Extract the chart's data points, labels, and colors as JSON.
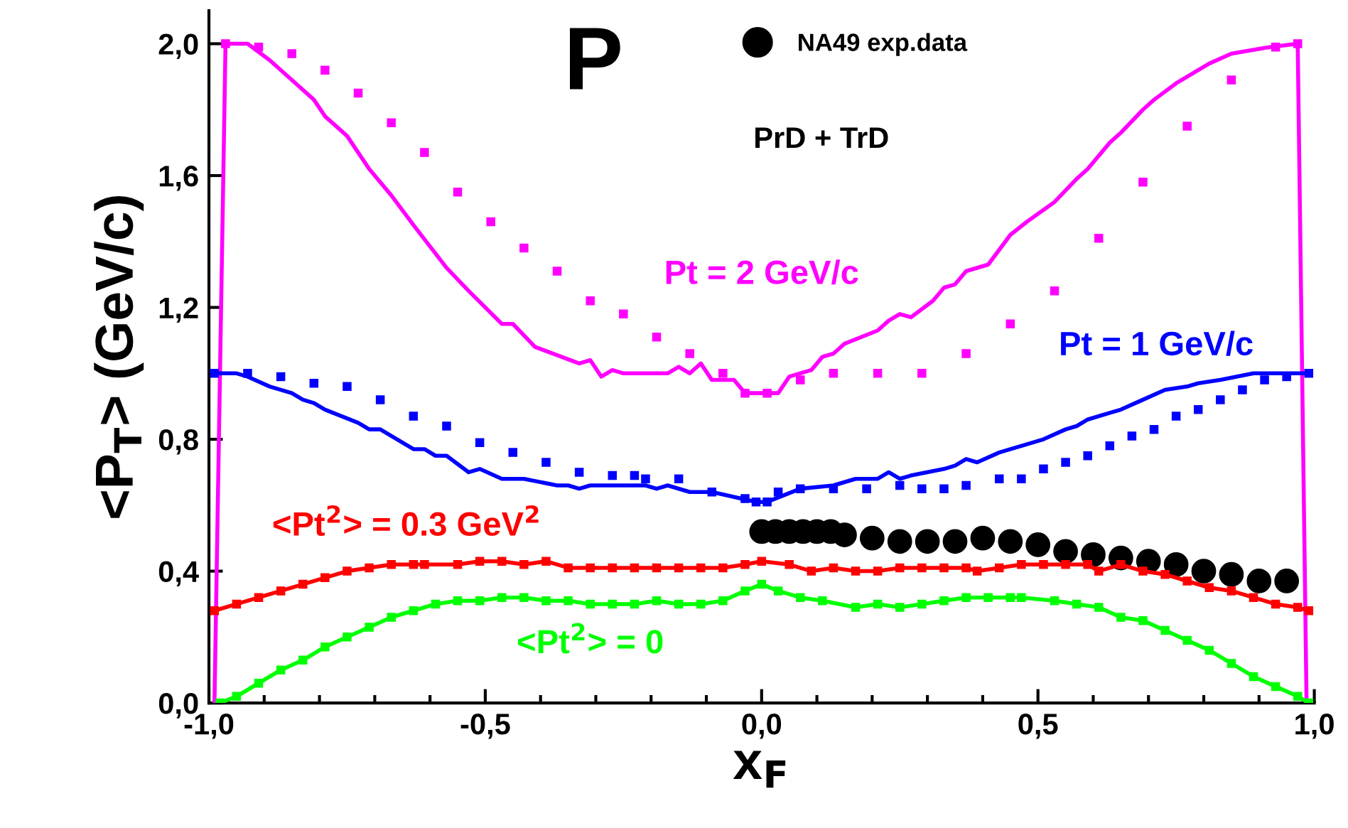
{
  "chart_data": {
    "type": "line",
    "xlabel": "x$_{F}$",
    "ylabel": "<P$_{T}$> (GeV/c)",
    "annotations": [
      "P",
      "PrD + TrD"
    ],
    "xlim": [
      -1.0,
      1.0
    ],
    "ylim": [
      0.0,
      2.1
    ],
    "xticks": [
      {
        "value": -1.0,
        "label": "-1,0"
      },
      {
        "value": -0.9,
        "label": null
      },
      {
        "value": -0.8,
        "label": null
      },
      {
        "value": -0.7,
        "label": null
      },
      {
        "value": -0.6,
        "label": null
      },
      {
        "value": -0.5,
        "label": "-0,5"
      },
      {
        "value": -0.4,
        "label": null
      },
      {
        "value": -0.3,
        "label": null
      },
      {
        "value": -0.2,
        "label": null
      },
      {
        "value": -0.1,
        "label": null
      },
      {
        "value": 0.0,
        "label": "0,0"
      },
      {
        "value": 0.1,
        "label": null
      },
      {
        "value": 0.2,
        "label": null
      },
      {
        "value": 0.3,
        "label": null
      },
      {
        "value": 0.4,
        "label": null
      },
      {
        "value": 0.5,
        "label": "0,5"
      },
      {
        "value": 0.6,
        "label": null
      },
      {
        "value": 0.7,
        "label": null
      },
      {
        "value": 0.8,
        "label": null
      },
      {
        "value": 0.9,
        "label": null
      },
      {
        "value": 1.0,
        "label": "1,0"
      }
    ],
    "yticks": [
      {
        "value": 0.0,
        "label": "0,0"
      },
      {
        "value": 0.4,
        "label": "0,4"
      },
      {
        "value": 0.8,
        "label": "0,8"
      },
      {
        "value": 1.2,
        "label": "1,2"
      },
      {
        "value": 1.6,
        "label": "1,6"
      },
      {
        "value": 2.0,
        "label": "2,0"
      }
    ],
    "grid": false,
    "legend": "top",
    "series": [
      {
        "name": "Pt = 2 GeV/c",
        "marker": "none",
        "color": "#ff00ff",
        "x": [
          -0.99,
          -0.97,
          -0.93,
          -0.89,
          -0.85,
          -0.81,
          -0.79,
          -0.75,
          -0.71,
          -0.67,
          -0.63,
          -0.57,
          -0.53,
          -0.47,
          -0.45,
          -0.41,
          -0.33,
          -0.31,
          -0.29,
          -0.27,
          -0.25,
          -0.19,
          -0.17,
          -0.15,
          -0.13,
          -0.11,
          -0.09,
          -0.05,
          -0.03,
          -0.01,
          0.03,
          0.05,
          0.09,
          0.11,
          0.13,
          0.15,
          0.21,
          0.23,
          0.25,
          0.27,
          0.31,
          0.33,
          0.35,
          0.37,
          0.41,
          0.45,
          0.48,
          0.53,
          0.57,
          0.59,
          0.63,
          0.65,
          0.69,
          0.71,
          0.75,
          0.77,
          0.81,
          0.85,
          0.92,
          0.97,
          0.986
        ],
        "values": [
          0.0,
          2.0,
          2.0,
          1.95,
          1.89,
          1.83,
          1.78,
          1.72,
          1.62,
          1.54,
          1.45,
          1.32,
          1.25,
          1.15,
          1.15,
          1.08,
          1.03,
          1.04,
          0.99,
          1.01,
          1.0,
          1.0,
          1.0,
          1.02,
          1.0,
          1.03,
          0.98,
          0.98,
          0.94,
          0.94,
          0.94,
          0.99,
          1.01,
          1.05,
          1.06,
          1.09,
          1.13,
          1.16,
          1.18,
          1.17,
          1.22,
          1.26,
          1.27,
          1.31,
          1.33,
          1.42,
          1.46,
          1.52,
          1.59,
          1.62,
          1.7,
          1.73,
          1.8,
          1.83,
          1.88,
          1.9,
          1.94,
          1.97,
          1.99,
          2.0,
          0.0
        ]
      },
      {
        "type": "scatter",
        "marker": "square",
        "color": "#ff00ff",
        "x": [
          -0.97,
          -0.91,
          -0.85,
          -0.79,
          -0.73,
          -0.67,
          -0.61,
          -0.55,
          -0.49,
          -0.43,
          -0.37,
          -0.31,
          -0.25,
          -0.19,
          -0.13,
          -0.07,
          -0.03,
          0.01,
          0.07,
          0.13,
          0.21,
          0.29,
          0.37,
          0.45,
          0.53,
          0.61,
          0.69,
          0.77,
          0.85,
          0.93,
          0.97
        ],
        "values": [
          2.0,
          1.99,
          1.97,
          1.92,
          1.85,
          1.76,
          1.67,
          1.55,
          1.46,
          1.38,
          1.31,
          1.22,
          1.18,
          1.11,
          1.06,
          1.0,
          0.94,
          0.94,
          0.98,
          1.0,
          1.0,
          1.0,
          1.06,
          1.15,
          1.25,
          1.41,
          1.58,
          1.75,
          1.89,
          1.99,
          2.0
        ]
      },
      {
        "name": "Pt = 1 GeV/c",
        "marker": "none",
        "color": "#0000ff",
        "x": [
          -0.99,
          -0.95,
          -0.93,
          -0.89,
          -0.85,
          -0.83,
          -0.81,
          -0.79,
          -0.73,
          -0.71,
          -0.69,
          -0.63,
          -0.61,
          -0.59,
          -0.57,
          -0.53,
          -0.51,
          -0.47,
          -0.43,
          -0.37,
          -0.35,
          -0.33,
          -0.31,
          -0.27,
          -0.21,
          -0.19,
          -0.17,
          -0.13,
          -0.09,
          -0.01,
          0.01,
          0.07,
          0.13,
          0.17,
          0.21,
          0.23,
          0.25,
          0.27,
          0.33,
          0.35,
          0.37,
          0.39,
          0.43,
          0.47,
          0.51,
          0.55,
          0.57,
          0.59,
          0.63,
          0.65,
          0.69,
          0.73,
          0.77,
          0.79,
          0.83,
          0.89,
          0.93,
          0.99
        ],
        "values": [
          1.0,
          1.0,
          0.99,
          0.96,
          0.94,
          0.92,
          0.91,
          0.89,
          0.85,
          0.83,
          0.83,
          0.77,
          0.77,
          0.75,
          0.75,
          0.7,
          0.71,
          0.68,
          0.68,
          0.66,
          0.66,
          0.65,
          0.66,
          0.66,
          0.66,
          0.65,
          0.66,
          0.64,
          0.64,
          0.61,
          0.61,
          0.65,
          0.66,
          0.68,
          0.68,
          0.7,
          0.68,
          0.69,
          0.71,
          0.72,
          0.74,
          0.73,
          0.76,
          0.78,
          0.8,
          0.83,
          0.84,
          0.86,
          0.88,
          0.89,
          0.92,
          0.95,
          0.96,
          0.97,
          0.98,
          1.0,
          1.0,
          1.0
        ]
      },
      {
        "type": "scatter",
        "marker": "square",
        "color": "#0000ff",
        "x": [
          -0.99,
          -0.93,
          -0.87,
          -0.81,
          -0.75,
          -0.69,
          -0.63,
          -0.57,
          -0.51,
          -0.45,
          -0.39,
          -0.33,
          -0.27,
          -0.23,
          -0.21,
          -0.15,
          -0.09,
          -0.03,
          -0.01,
          0.01,
          0.03,
          0.07,
          0.13,
          0.19,
          0.25,
          0.29,
          0.33,
          0.37,
          0.43,
          0.47,
          0.51,
          0.55,
          0.59,
          0.63,
          0.67,
          0.71,
          0.75,
          0.79,
          0.83,
          0.87,
          0.91,
          0.95,
          0.99
        ],
        "values": [
          1.0,
          1.0,
          0.99,
          0.97,
          0.96,
          0.92,
          0.87,
          0.84,
          0.79,
          0.76,
          0.73,
          0.7,
          0.69,
          0.69,
          0.68,
          0.68,
          0.64,
          0.62,
          0.61,
          0.61,
          0.64,
          0.65,
          0.65,
          0.65,
          0.66,
          0.65,
          0.65,
          0.66,
          0.68,
          0.68,
          0.71,
          0.73,
          0.75,
          0.78,
          0.81,
          0.83,
          0.87,
          0.89,
          0.92,
          0.95,
          0.98,
          0.99,
          1.0
        ]
      },
      {
        "name": "<Pt$^{2}$> = 0.3 GeV$^{2}$",
        "marker": "square",
        "color": "#ff0000",
        "x": [
          -0.99,
          -0.95,
          -0.91,
          -0.87,
          -0.83,
          -0.79,
          -0.75,
          -0.71,
          -0.67,
          -0.63,
          -0.61,
          -0.55,
          -0.51,
          -0.47,
          -0.43,
          -0.39,
          -0.35,
          -0.31,
          -0.27,
          -0.23,
          -0.19,
          -0.15,
          -0.11,
          -0.07,
          -0.03,
          0.0,
          0.05,
          0.09,
          0.13,
          0.17,
          0.21,
          0.25,
          0.29,
          0.33,
          0.37,
          0.39,
          0.43,
          0.47,
          0.51,
          0.55,
          0.59,
          0.61,
          0.65,
          0.69,
          0.73,
          0.77,
          0.81,
          0.85,
          0.89,
          0.93,
          0.97,
          0.99
        ],
        "values": [
          0.28,
          0.3,
          0.32,
          0.34,
          0.36,
          0.38,
          0.4,
          0.41,
          0.42,
          0.42,
          0.42,
          0.42,
          0.43,
          0.43,
          0.42,
          0.43,
          0.41,
          0.41,
          0.41,
          0.41,
          0.41,
          0.41,
          0.41,
          0.41,
          0.42,
          0.43,
          0.42,
          0.4,
          0.41,
          0.4,
          0.4,
          0.41,
          0.41,
          0.41,
          0.41,
          0.4,
          0.41,
          0.42,
          0.42,
          0.42,
          0.42,
          0.4,
          0.42,
          0.4,
          0.39,
          0.37,
          0.35,
          0.34,
          0.32,
          0.3,
          0.29,
          0.28
        ]
      },
      {
        "name": "<Pt$^{2}$> = 0",
        "marker": "square",
        "color": "#00ff00",
        "x": [
          -0.98,
          -0.95,
          -0.91,
          -0.87,
          -0.83,
          -0.79,
          -0.75,
          -0.71,
          -0.67,
          -0.63,
          -0.59,
          -0.55,
          -0.51,
          -0.47,
          -0.43,
          -0.39,
          -0.35,
          -0.31,
          -0.27,
          -0.23,
          -0.19,
          -0.15,
          -0.11,
          -0.07,
          -0.03,
          0.0,
          0.03,
          0.07,
          0.11,
          0.17,
          0.21,
          0.25,
          0.29,
          0.33,
          0.37,
          0.41,
          0.45,
          0.47,
          0.53,
          0.57,
          0.61,
          0.65,
          0.69,
          0.73,
          0.77,
          0.81,
          0.85,
          0.89,
          0.93,
          0.97,
          0.99
        ],
        "values": [
          0.0,
          0.02,
          0.06,
          0.1,
          0.13,
          0.17,
          0.2,
          0.23,
          0.26,
          0.28,
          0.3,
          0.31,
          0.31,
          0.32,
          0.32,
          0.31,
          0.31,
          0.3,
          0.3,
          0.3,
          0.31,
          0.3,
          0.3,
          0.31,
          0.34,
          0.36,
          0.34,
          0.32,
          0.31,
          0.29,
          0.3,
          0.29,
          0.3,
          0.31,
          0.32,
          0.32,
          0.32,
          0.32,
          0.31,
          0.3,
          0.29,
          0.26,
          0.25,
          0.22,
          0.19,
          0.16,
          0.12,
          0.08,
          0.05,
          0.02,
          0.0
        ]
      },
      {
        "name": "NA49 exp.data",
        "type": "scatter",
        "marker": "circle",
        "color": "#000000",
        "x": [
          0.0,
          0.025,
          0.05,
          0.075,
          0.1,
          0.125,
          0.15,
          0.2,
          0.25,
          0.3,
          0.35,
          0.4,
          0.45,
          0.5,
          0.55,
          0.6,
          0.65,
          0.7,
          0.75,
          0.8,
          0.85,
          0.9,
          0.95
        ],
        "values": [
          0.52,
          0.52,
          0.52,
          0.52,
          0.52,
          0.52,
          0.51,
          0.5,
          0.49,
          0.49,
          0.49,
          0.5,
          0.49,
          0.48,
          0.46,
          0.45,
          0.44,
          0.43,
          0.42,
          0.4,
          0.39,
          0.37,
          0.37
        ]
      }
    ]
  }
}
